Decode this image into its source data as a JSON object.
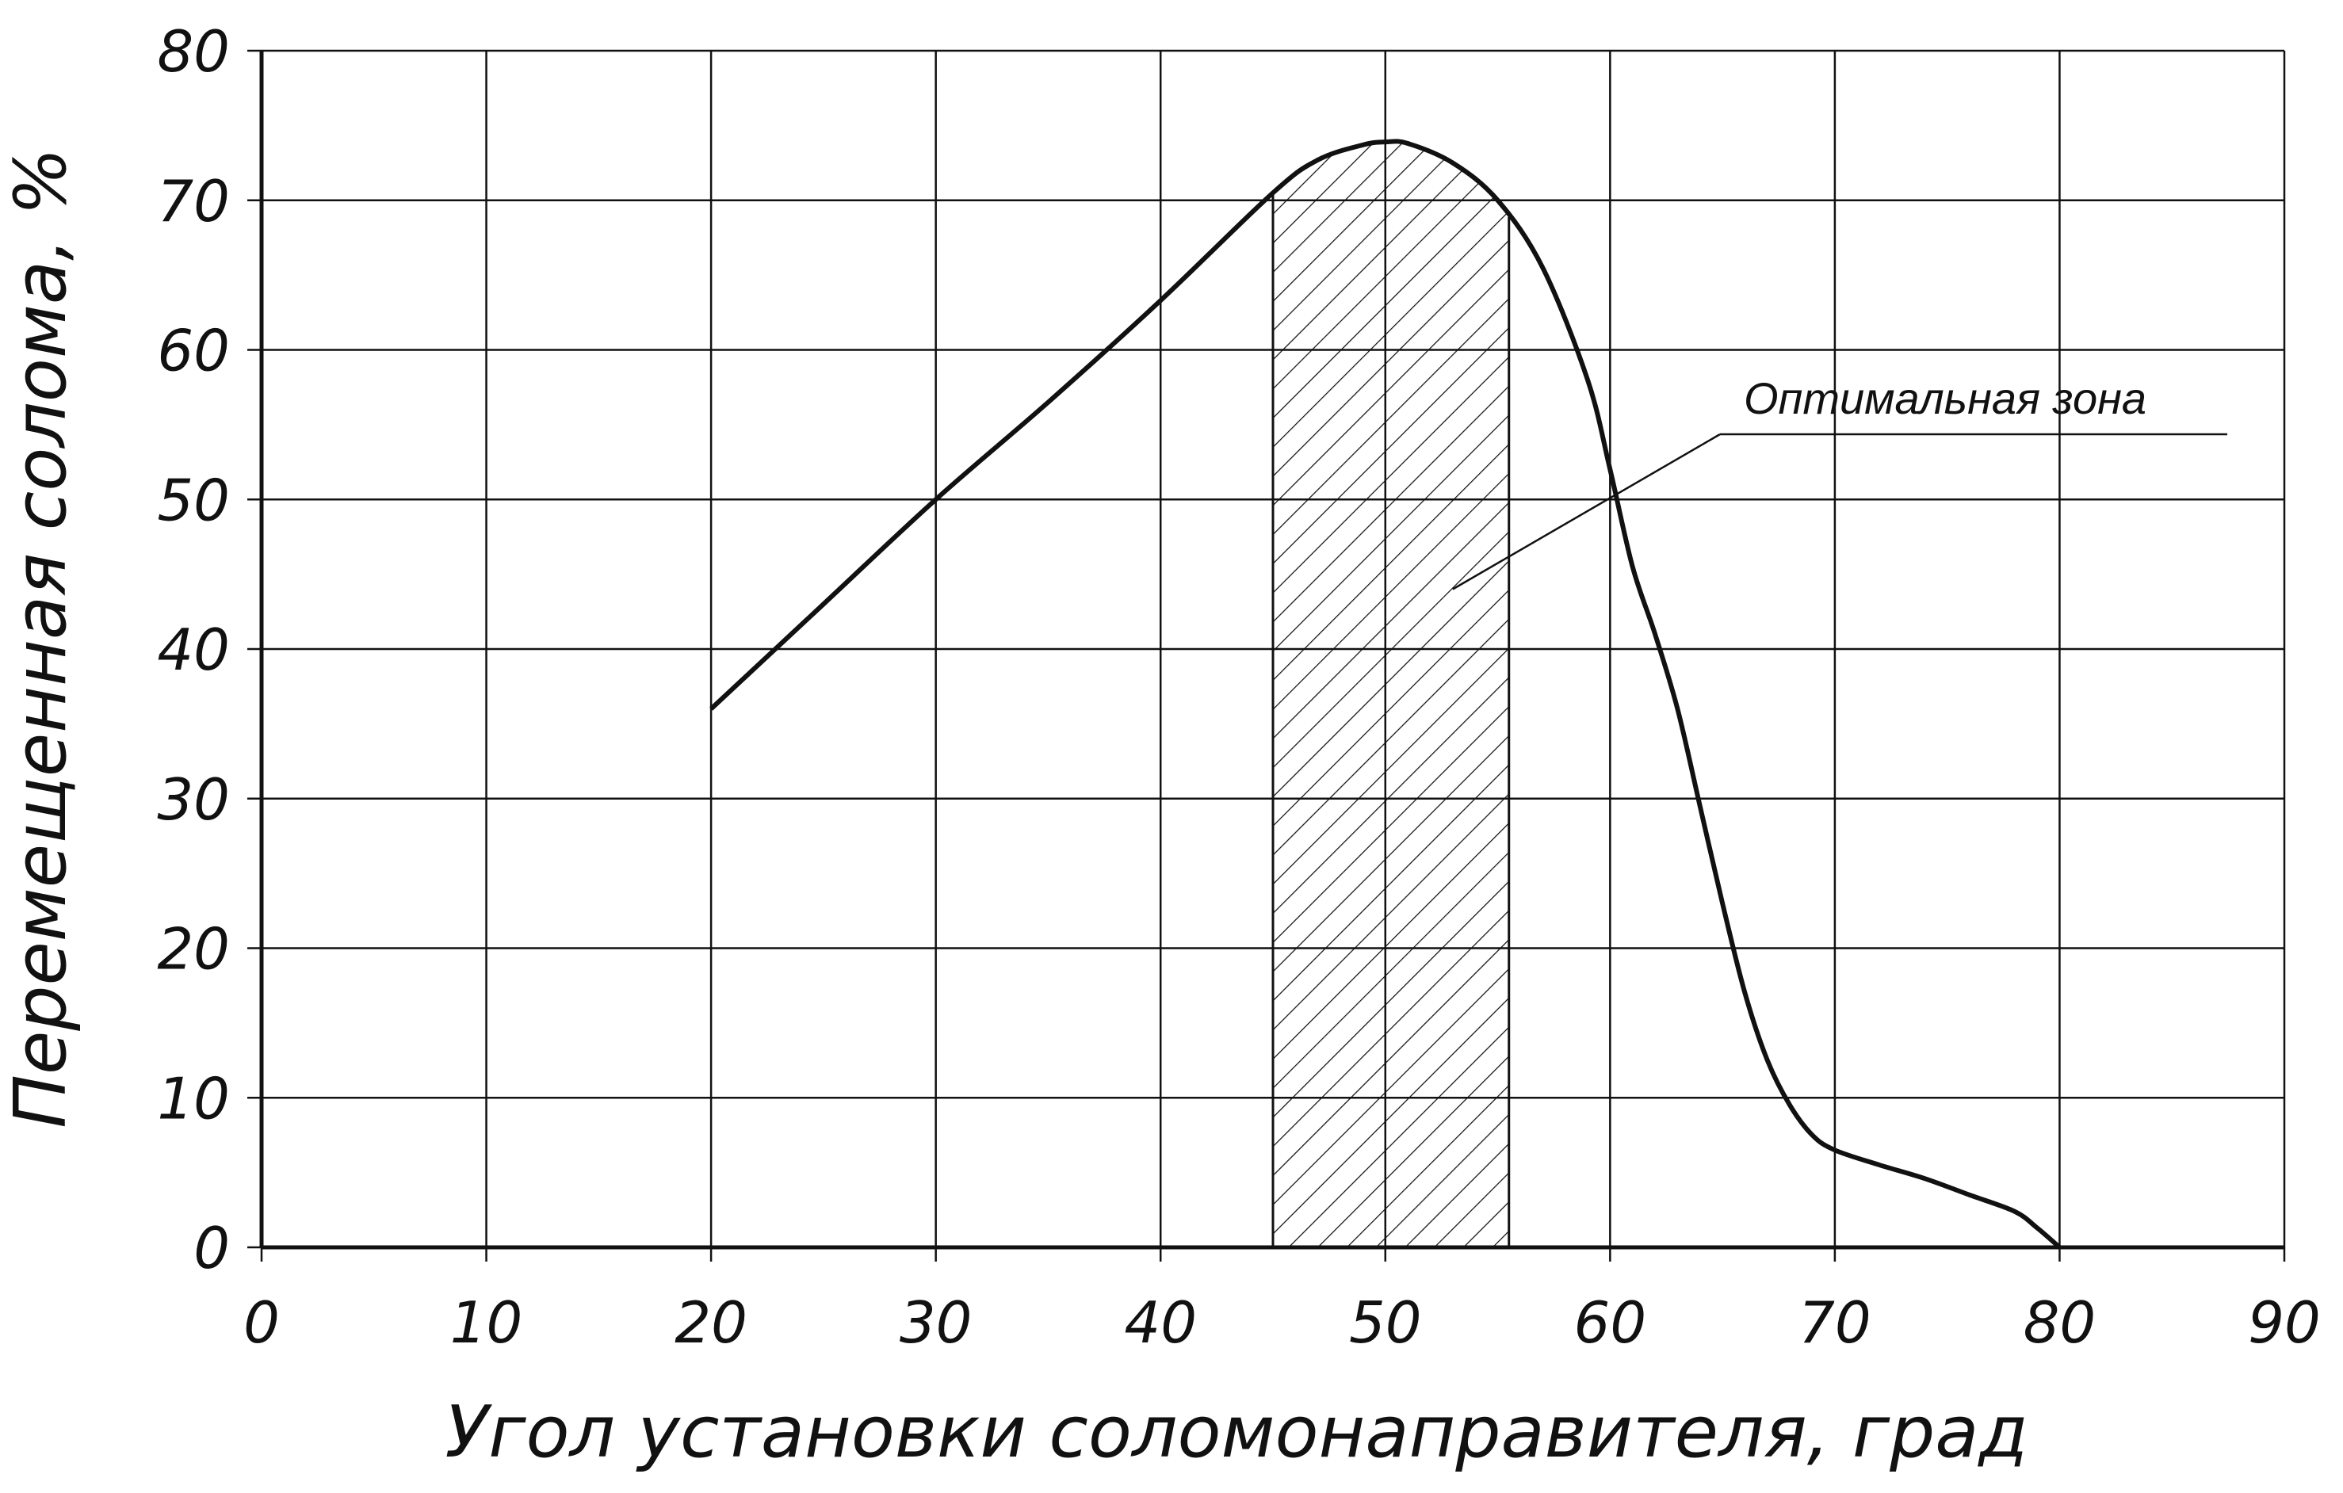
{
  "chart_data": {
    "type": "line",
    "title": "",
    "xlabel": "Угол установки соломонаправителя, град",
    "ylabel": "Перемещенная солома, %",
    "xlim": [
      0,
      90
    ],
    "ylim": [
      0,
      80
    ],
    "x_ticks": [
      "0",
      "10",
      "20",
      "30",
      "40",
      "50",
      "60",
      "70",
      "80",
      "90"
    ],
    "y_ticks": [
      "0",
      "10",
      "20",
      "30",
      "40",
      "50",
      "60",
      "70",
      "80"
    ],
    "grid": true,
    "series": [
      {
        "x": [
          20,
          25,
          30,
          35,
          40,
          45,
          47,
          49,
          50,
          51,
          53,
          55,
          57,
          59,
          60,
          61,
          62,
          63,
          64,
          65,
          66,
          67,
          68,
          69,
          70,
          72,
          74,
          76,
          78,
          79,
          80
        ],
        "y": [
          36,
          43,
          50,
          56.5,
          63.3,
          70.5,
          72.7,
          73.7,
          73.9,
          73.8,
          72.5,
          70,
          65.5,
          58,
          52,
          45.5,
          41,
          36,
          29.5,
          23,
          17,
          12.5,
          9.5,
          7.5,
          6.5,
          5.5,
          4.6,
          3.5,
          2.4,
          1.3,
          0
        ]
      }
    ],
    "highlight_band": {
      "x_from": 45,
      "x_to": 55.5,
      "pattern": "diagonal-hatch"
    },
    "annotation": {
      "text": "Оптимальная зона",
      "points_to": [
        53,
        44
      ]
    },
    "colors": {
      "ink": "#111111",
      "background": "#ffffff"
    }
  }
}
